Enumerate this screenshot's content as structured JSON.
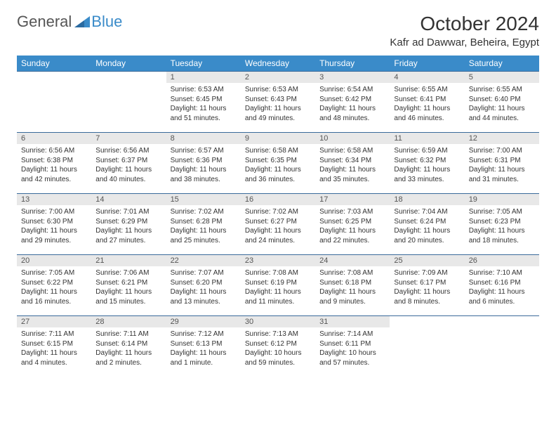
{
  "logo": {
    "text1": "General",
    "text2": "Blue"
  },
  "title": "October 2024",
  "location": "Kafr ad Dawwar, Beheira, Egypt",
  "colors": {
    "header_bg": "#3a8bc9",
    "header_text": "#ffffff",
    "border": "#3a6a9a",
    "daynum_bg": "#e8e8e8",
    "logo_blue": "#3a8bc9"
  },
  "weekdays": [
    "Sunday",
    "Monday",
    "Tuesday",
    "Wednesday",
    "Thursday",
    "Friday",
    "Saturday"
  ],
  "weeks": [
    [
      {
        "n": "",
        "sr": "",
        "ss": "",
        "dl": ""
      },
      {
        "n": "",
        "sr": "",
        "ss": "",
        "dl": ""
      },
      {
        "n": "1",
        "sr": "Sunrise: 6:53 AM",
        "ss": "Sunset: 6:45 PM",
        "dl": "Daylight: 11 hours and 51 minutes."
      },
      {
        "n": "2",
        "sr": "Sunrise: 6:53 AM",
        "ss": "Sunset: 6:43 PM",
        "dl": "Daylight: 11 hours and 49 minutes."
      },
      {
        "n": "3",
        "sr": "Sunrise: 6:54 AM",
        "ss": "Sunset: 6:42 PM",
        "dl": "Daylight: 11 hours and 48 minutes."
      },
      {
        "n": "4",
        "sr": "Sunrise: 6:55 AM",
        "ss": "Sunset: 6:41 PM",
        "dl": "Daylight: 11 hours and 46 minutes."
      },
      {
        "n": "5",
        "sr": "Sunrise: 6:55 AM",
        "ss": "Sunset: 6:40 PM",
        "dl": "Daylight: 11 hours and 44 minutes."
      }
    ],
    [
      {
        "n": "6",
        "sr": "Sunrise: 6:56 AM",
        "ss": "Sunset: 6:38 PM",
        "dl": "Daylight: 11 hours and 42 minutes."
      },
      {
        "n": "7",
        "sr": "Sunrise: 6:56 AM",
        "ss": "Sunset: 6:37 PM",
        "dl": "Daylight: 11 hours and 40 minutes."
      },
      {
        "n": "8",
        "sr": "Sunrise: 6:57 AM",
        "ss": "Sunset: 6:36 PM",
        "dl": "Daylight: 11 hours and 38 minutes."
      },
      {
        "n": "9",
        "sr": "Sunrise: 6:58 AM",
        "ss": "Sunset: 6:35 PM",
        "dl": "Daylight: 11 hours and 36 minutes."
      },
      {
        "n": "10",
        "sr": "Sunrise: 6:58 AM",
        "ss": "Sunset: 6:34 PM",
        "dl": "Daylight: 11 hours and 35 minutes."
      },
      {
        "n": "11",
        "sr": "Sunrise: 6:59 AM",
        "ss": "Sunset: 6:32 PM",
        "dl": "Daylight: 11 hours and 33 minutes."
      },
      {
        "n": "12",
        "sr": "Sunrise: 7:00 AM",
        "ss": "Sunset: 6:31 PM",
        "dl": "Daylight: 11 hours and 31 minutes."
      }
    ],
    [
      {
        "n": "13",
        "sr": "Sunrise: 7:00 AM",
        "ss": "Sunset: 6:30 PM",
        "dl": "Daylight: 11 hours and 29 minutes."
      },
      {
        "n": "14",
        "sr": "Sunrise: 7:01 AM",
        "ss": "Sunset: 6:29 PM",
        "dl": "Daylight: 11 hours and 27 minutes."
      },
      {
        "n": "15",
        "sr": "Sunrise: 7:02 AM",
        "ss": "Sunset: 6:28 PM",
        "dl": "Daylight: 11 hours and 25 minutes."
      },
      {
        "n": "16",
        "sr": "Sunrise: 7:02 AM",
        "ss": "Sunset: 6:27 PM",
        "dl": "Daylight: 11 hours and 24 minutes."
      },
      {
        "n": "17",
        "sr": "Sunrise: 7:03 AM",
        "ss": "Sunset: 6:25 PM",
        "dl": "Daylight: 11 hours and 22 minutes."
      },
      {
        "n": "18",
        "sr": "Sunrise: 7:04 AM",
        "ss": "Sunset: 6:24 PM",
        "dl": "Daylight: 11 hours and 20 minutes."
      },
      {
        "n": "19",
        "sr": "Sunrise: 7:05 AM",
        "ss": "Sunset: 6:23 PM",
        "dl": "Daylight: 11 hours and 18 minutes."
      }
    ],
    [
      {
        "n": "20",
        "sr": "Sunrise: 7:05 AM",
        "ss": "Sunset: 6:22 PM",
        "dl": "Daylight: 11 hours and 16 minutes."
      },
      {
        "n": "21",
        "sr": "Sunrise: 7:06 AM",
        "ss": "Sunset: 6:21 PM",
        "dl": "Daylight: 11 hours and 15 minutes."
      },
      {
        "n": "22",
        "sr": "Sunrise: 7:07 AM",
        "ss": "Sunset: 6:20 PM",
        "dl": "Daylight: 11 hours and 13 minutes."
      },
      {
        "n": "23",
        "sr": "Sunrise: 7:08 AM",
        "ss": "Sunset: 6:19 PM",
        "dl": "Daylight: 11 hours and 11 minutes."
      },
      {
        "n": "24",
        "sr": "Sunrise: 7:08 AM",
        "ss": "Sunset: 6:18 PM",
        "dl": "Daylight: 11 hours and 9 minutes."
      },
      {
        "n": "25",
        "sr": "Sunrise: 7:09 AM",
        "ss": "Sunset: 6:17 PM",
        "dl": "Daylight: 11 hours and 8 minutes."
      },
      {
        "n": "26",
        "sr": "Sunrise: 7:10 AM",
        "ss": "Sunset: 6:16 PM",
        "dl": "Daylight: 11 hours and 6 minutes."
      }
    ],
    [
      {
        "n": "27",
        "sr": "Sunrise: 7:11 AM",
        "ss": "Sunset: 6:15 PM",
        "dl": "Daylight: 11 hours and 4 minutes."
      },
      {
        "n": "28",
        "sr": "Sunrise: 7:11 AM",
        "ss": "Sunset: 6:14 PM",
        "dl": "Daylight: 11 hours and 2 minutes."
      },
      {
        "n": "29",
        "sr": "Sunrise: 7:12 AM",
        "ss": "Sunset: 6:13 PM",
        "dl": "Daylight: 11 hours and 1 minute."
      },
      {
        "n": "30",
        "sr": "Sunrise: 7:13 AM",
        "ss": "Sunset: 6:12 PM",
        "dl": "Daylight: 10 hours and 59 minutes."
      },
      {
        "n": "31",
        "sr": "Sunrise: 7:14 AM",
        "ss": "Sunset: 6:11 PM",
        "dl": "Daylight: 10 hours and 57 minutes."
      },
      {
        "n": "",
        "sr": "",
        "ss": "",
        "dl": ""
      },
      {
        "n": "",
        "sr": "",
        "ss": "",
        "dl": ""
      }
    ]
  ]
}
